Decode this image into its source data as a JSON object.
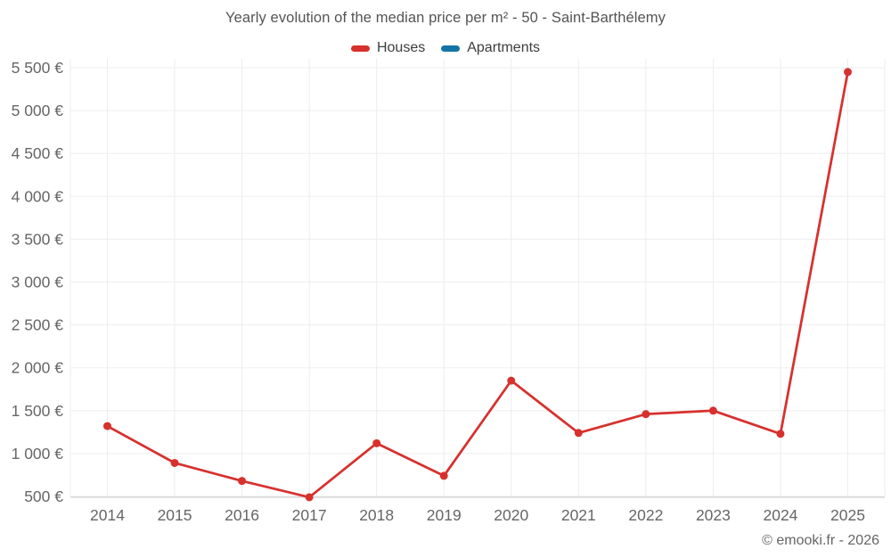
{
  "header": {
    "title": "Yearly evolution of the median price per m² - 50 - Saint-Barthélemy"
  },
  "legend": [
    {
      "label": "Houses",
      "color": "#d7312e"
    },
    {
      "label": "Apartments",
      "color": "#1374a5"
    }
  ],
  "watermark": "© emooki.fr - 2026",
  "chart_data": {
    "type": "line",
    "title": "Yearly evolution of the median price per m² - 50 - Saint-Barthélemy",
    "xlabel": "",
    "ylabel": "",
    "categories": [
      "2014",
      "2015",
      "2016",
      "2017",
      "2018",
      "2019",
      "2020",
      "2021",
      "2022",
      "2023",
      "2024",
      "2025"
    ],
    "series": [
      {
        "name": "Houses",
        "color": "#d7312e",
        "values": [
          1320,
          890,
          680,
          490,
          1120,
          740,
          1850,
          1240,
          1460,
          1500,
          1230,
          5450
        ]
      },
      {
        "name": "Apartments",
        "color": "#1374a5",
        "values": []
      }
    ],
    "ylim": [
      500,
      5500
    ],
    "ytick_step": 500,
    "ytick_labels": [
      "500 €",
      "1 000 €",
      "1 500 €",
      "2 000 €",
      "2 500 €",
      "3 000 €",
      "3 500 €",
      "4 000 €",
      "4 500 €",
      "5 000 €",
      "5 500 €"
    ],
    "currency": "€",
    "grid": true,
    "legend_position": "top"
  },
  "style": {
    "grid_color": "#ededed",
    "axis_line_color": "#c9c9c9",
    "tick_label_color": "#666666"
  }
}
